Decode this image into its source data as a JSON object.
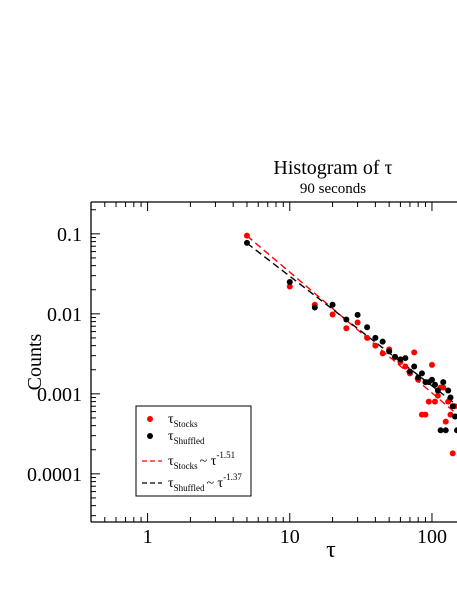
{
  "chart_data": {
    "type": "scatter",
    "title": "Histogram of τ",
    "subtitle": "90 seconds",
    "xlabel": "τ",
    "ylabel": "Counts",
    "x_scale": "log",
    "y_scale": "log",
    "xlim": [
      0.4,
      150
    ],
    "ylim": [
      2.5e-05,
      0.25
    ],
    "x_ticks": [
      {
        "value": 1,
        "label": "1"
      },
      {
        "value": 10,
        "label": "10"
      },
      {
        "value": 100,
        "label": "100"
      }
    ],
    "y_ticks": [
      {
        "value": 0.1,
        "label": "0.1"
      },
      {
        "value": 0.01,
        "label": "0.01"
      },
      {
        "value": 0.001,
        "label": "0.001"
      },
      {
        "value": 0.0001,
        "label": "0.0001"
      }
    ],
    "colors": {
      "stocks": "#ff0000",
      "shuffled": "#000000"
    },
    "legend_position": "bottom-left",
    "series": [
      {
        "key": "stocks",
        "legend_main": "τ",
        "legend_sub": "Stocks",
        "color": "#ff0000",
        "points": [
          [
            5,
            0.095
          ],
          [
            10,
            0.022
          ],
          [
            15,
            0.013
          ],
          [
            20,
            0.0098
          ],
          [
            25,
            0.0066
          ],
          [
            30,
            0.0078
          ],
          [
            35,
            0.005
          ],
          [
            40,
            0.004
          ],
          [
            45,
            0.0032
          ],
          [
            50,
            0.0036
          ],
          [
            55,
            0.0029
          ],
          [
            60,
            0.0025
          ],
          [
            65,
            0.0022
          ],
          [
            70,
            0.0018
          ],
          [
            75,
            0.0033
          ],
          [
            80,
            0.0015
          ],
          [
            85,
            0.00055
          ],
          [
            90,
            0.00055
          ],
          [
            95,
            0.0008
          ],
          [
            100,
            0.0023
          ],
          [
            105,
            0.0008
          ],
          [
            110,
            0.00095
          ],
          [
            115,
            0.0012
          ],
          [
            120,
            0.0012
          ],
          [
            125,
            0.00045
          ],
          [
            130,
            0.0008
          ],
          [
            135,
            0.00055
          ],
          [
            140,
            0.00018
          ],
          [
            145,
            0.0007
          ]
        ]
      },
      {
        "key": "shuffled",
        "legend_main": "τ",
        "legend_sub": "Shuffled",
        "color": "#000000",
        "points": [
          [
            5,
            0.077
          ],
          [
            10,
            0.025
          ],
          [
            15,
            0.012
          ],
          [
            20,
            0.013
          ],
          [
            25,
            0.0085
          ],
          [
            30,
            0.0097
          ],
          [
            35,
            0.0068
          ],
          [
            40,
            0.005
          ],
          [
            45,
            0.0045
          ],
          [
            50,
            0.0034
          ],
          [
            55,
            0.0029
          ],
          [
            60,
            0.0027
          ],
          [
            65,
            0.0028
          ],
          [
            70,
            0.0019
          ],
          [
            75,
            0.0022
          ],
          [
            80,
            0.0016
          ],
          [
            85,
            0.0018
          ],
          [
            90,
            0.0014
          ],
          [
            95,
            0.0014
          ],
          [
            100,
            0.0015
          ],
          [
            105,
            0.0013
          ],
          [
            110,
            0.0011
          ],
          [
            115,
            0.00035
          ],
          [
            120,
            0.0014
          ],
          [
            125,
            0.00035
          ],
          [
            130,
            0.0011
          ],
          [
            135,
            0.0009
          ],
          [
            140,
            0.0007
          ],
          [
            145,
            0.00052
          ],
          [
            150,
            0.00035
          ]
        ]
      }
    ],
    "fits": [
      {
        "key": "stocks_fit",
        "legend_main": "τ",
        "legend_sub": "Stocks",
        "legend_rel": "~ τ",
        "legend_exp": "-1.51",
        "exponent": -1.51,
        "prefactor": 1.074,
        "x_range": [
          5,
          150
        ],
        "color": "#ff0000"
      },
      {
        "key": "shuffled_fit",
        "legend_main": "τ",
        "legend_sub": "Shuffled",
        "legend_rel": "~ τ",
        "legend_exp": "-1.37",
        "exponent": -1.37,
        "prefactor": 0.692,
        "x_range": [
          5,
          150
        ],
        "color": "#000000"
      }
    ]
  }
}
